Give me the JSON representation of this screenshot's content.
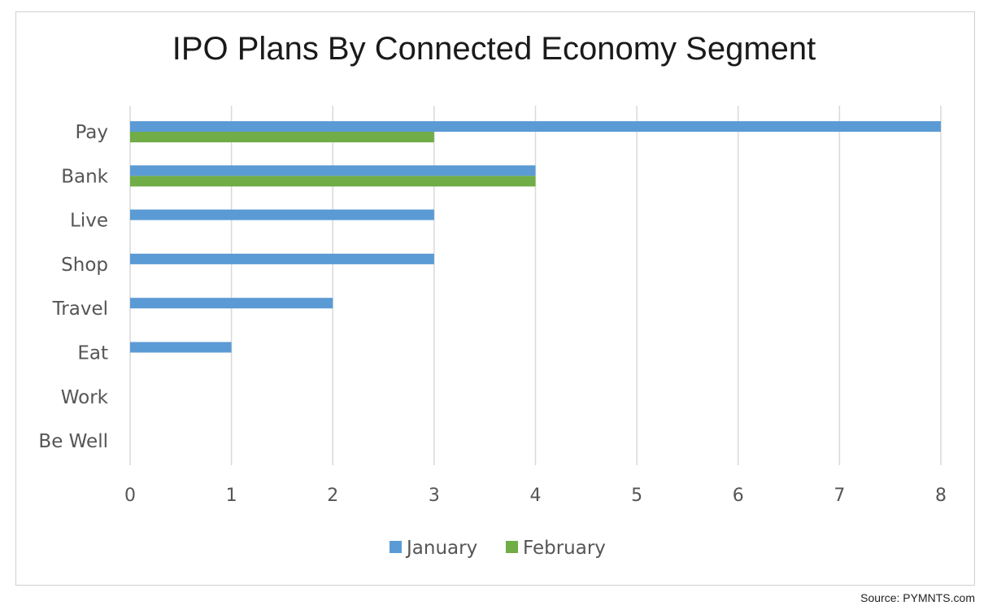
{
  "chart_data": {
    "type": "bar",
    "orientation": "horizontal",
    "title": "IPO Plans By Connected Economy Segment",
    "categories": [
      "Pay",
      "Bank",
      "Live",
      "Shop",
      "Travel",
      "Eat",
      "Work",
      "Be Well"
    ],
    "series": [
      {
        "name": "January",
        "color": "#5b9bd5",
        "values": [
          8,
          4,
          3,
          3,
          2,
          1,
          0,
          0
        ]
      },
      {
        "name": "February",
        "color": "#70ad47",
        "values": [
          3,
          4,
          0,
          0,
          0,
          0,
          0,
          0
        ]
      }
    ],
    "xlim": [
      0,
      8
    ],
    "xticks": [
      "0",
      "1",
      "2",
      "3",
      "4",
      "5",
      "6",
      "7",
      "8"
    ],
    "grid": true,
    "legend_position": "bottom"
  },
  "source": "Source: PYMNTS.com"
}
